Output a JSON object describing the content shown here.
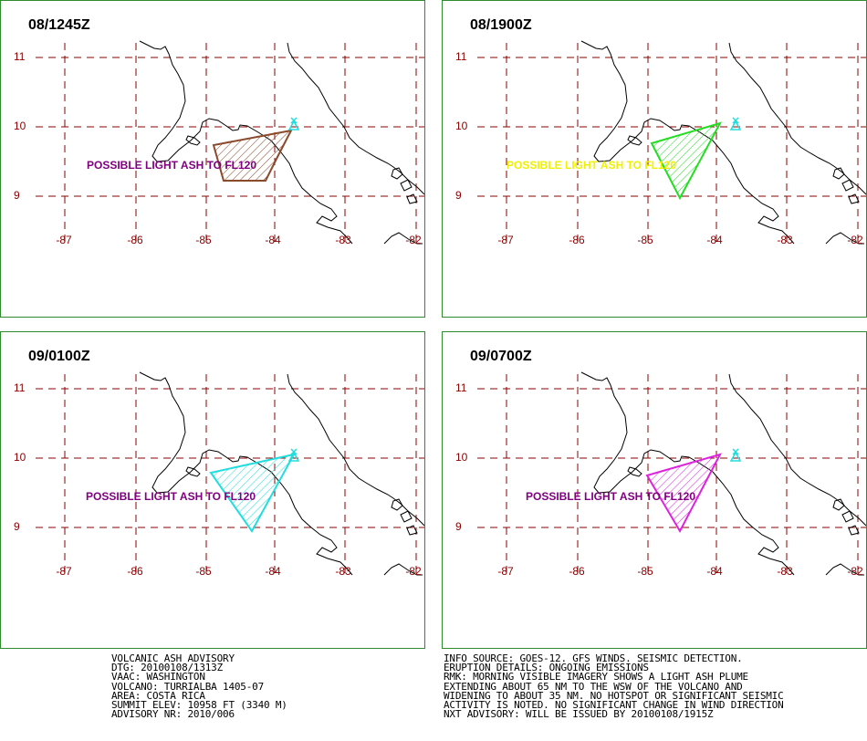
{
  "panels": [
    {
      "time": "08/1245Z",
      "plume_color": "#8b4a2b",
      "label": "POSSIBLE LIGHT ASH TO FL120",
      "label_color": "#800080"
    },
    {
      "time": "08/1900Z",
      "plume_color": "#22dd22",
      "label": "POSSIBLE LIGHT ASH TO FL120",
      "label_color": "#f0f000"
    },
    {
      "time": "09/0100Z",
      "plume_color": "#22dddd",
      "label": "POSSIBLE LIGHT ASH TO FL120",
      "label_color": "#800080"
    },
    {
      "time": "09/0700Z",
      "plume_color": "#dd22dd",
      "label": "POSSIBLE LIGHT ASH TO FL120",
      "label_color": "#800080"
    }
  ],
  "map": {
    "lat_labels": [
      "11",
      "10",
      "9"
    ],
    "lon_labels": [
      "-87",
      "-86",
      "-85",
      "-84",
      "-83",
      "-82"
    ],
    "grid_color": "#8b0000",
    "coast_color": "#000000"
  },
  "advisory_left": [
    "VOLCANIC ASH ADVISORY",
    "DTG: 20100108/1313Z",
    "VAAC: WASHINGTON",
    "VOLCANO: TURRIALBA 1405-07",
    "AREA: COSTA RICA",
    "SUMMIT ELEV: 10958 FT (3340 M)",
    "ADVISORY NR: 2010/006"
  ],
  "advisory_right": [
    "INFO SOURCE: GOES-12. GFS WINDS. SEISMIC DETECTION.",
    "ERUPTION DETAILS: ONGOING EMISSIONS",
    "RMK: MORNING VISIBLE IMAGERY SHOWS A LIGHT ASH PLUME",
    "EXTENDING ABOUT 65 NM TO THE WSW OF THE VOLCANO AND",
    "WIDENING TO ABOUT 35 NM. NO HOTSPOT OR SIGNIFICANT SEISMIC",
    "ACTIVITY IS NOTED. NO SIGNIFICANT CHANGE IN WIND DIRECTION",
    "NXT ADVISORY: WILL BE ISSUED BY 20100108/1915Z"
  ]
}
